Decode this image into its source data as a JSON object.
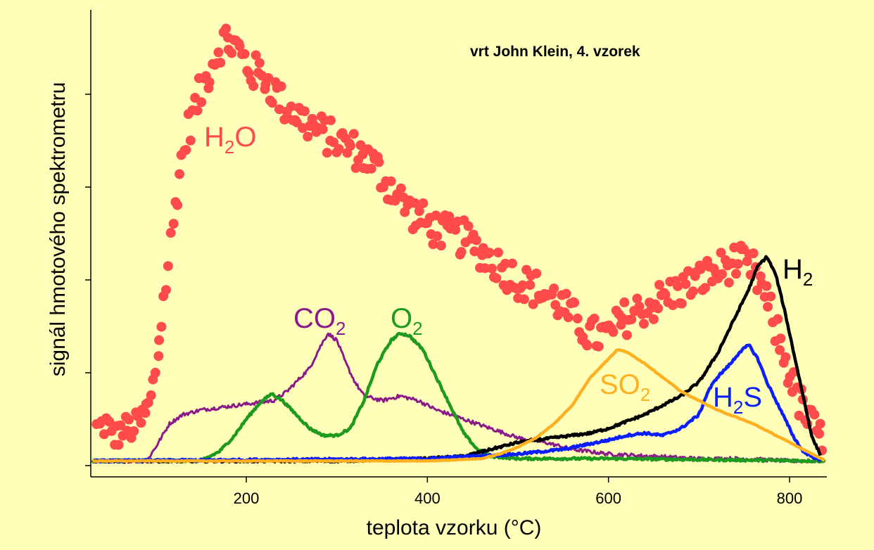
{
  "chart_data": {
    "type": "line",
    "title": "vrt John Klein, 4. vzorek",
    "xlabel": "teplota vzorku (°C)",
    "ylabel": "signál hmotového spektrometru",
    "xlim": [
      30,
      840
    ],
    "ylim": [
      0,
      100
    ],
    "x_ticks": [
      200,
      400,
      600,
      800
    ],
    "y_ticks": [
      0,
      20,
      40,
      60,
      80
    ],
    "y_tick_labels_shown": false,
    "grid": false,
    "legend": "inline labels next to curves",
    "series": [
      {
        "name": "H2O",
        "label_main": "H",
        "label_sub": "2",
        "label_tail": "O",
        "color": "#ff4b4b",
        "style": "markers",
        "x": [
          35,
          45,
          55,
          65,
          75,
          85,
          95,
          105,
          115,
          125,
          135,
          145,
          160,
          175,
          190,
          205,
          220,
          240,
          260,
          280,
          300,
          320,
          340,
          360,
          380,
          400,
          420,
          440,
          460,
          480,
          500,
          520,
          540,
          560,
          580,
          600,
          620,
          640,
          660,
          680,
          700,
          720,
          740,
          760,
          770,
          780,
          790,
          800,
          810,
          820,
          830,
          838
        ],
        "y": [
          8,
          9,
          6,
          8,
          8,
          10,
          14,
          28,
          45,
          62,
          72,
          78,
          86,
          92,
          90,
          85,
          84,
          78,
          75,
          72,
          70,
          68,
          65,
          60,
          55,
          52,
          50,
          49,
          46,
          43,
          40,
          38,
          36,
          32,
          28,
          28,
          32,
          34,
          36,
          38,
          40,
          42,
          44,
          42,
          38,
          32,
          26,
          20,
          14,
          10,
          7,
          5
        ]
      },
      {
        "name": "CO2",
        "label_main": "CO",
        "label_sub": "2",
        "label_tail": "",
        "color": "#8b1a8b",
        "style": "line",
        "x": [
          30,
          90,
          100,
          115,
          130,
          150,
          170,
          190,
          210,
          230,
          245,
          260,
          270,
          280,
          290,
          300,
          310,
          320,
          330,
          350,
          370,
          390,
          410,
          440,
          470,
          500,
          530,
          560,
          600,
          650,
          700,
          750,
          800,
          840
        ],
        "y": [
          1,
          1,
          4,
          9,
          11,
          12,
          12.5,
          13,
          13.5,
          14,
          16,
          19,
          21,
          25,
          28.5,
          27,
          22,
          18,
          15,
          14,
          15,
          14,
          12,
          10,
          8,
          6,
          5,
          3.5,
          2.5,
          2,
          1.5,
          1.5,
          1,
          1
        ]
      },
      {
        "name": "O2",
        "label_main": "O",
        "label_sub": "2",
        "label_tail": "",
        "color": "#1e9a1e",
        "style": "line",
        "x": [
          30,
          150,
          170,
          185,
          200,
          215,
          228,
          240,
          255,
          270,
          285,
          300,
          315,
          330,
          345,
          360,
          370,
          380,
          395,
          410,
          425,
          440,
          455,
          470,
          500,
          600,
          840
        ],
        "y": [
          1,
          1,
          3,
          6,
          10,
          13.5,
          15.5,
          14,
          11,
          8,
          6.5,
          6.5,
          8,
          14,
          22,
          27,
          28.5,
          28,
          25,
          19,
          13,
          7,
          3.5,
          2,
          1.5,
          1.5,
          1
        ]
      },
      {
        "name": "H2",
        "label_main": "H",
        "label_sub": "2",
        "label_tail": "",
        "color": "#000000",
        "style": "line",
        "x": [
          30,
          300,
          400,
          440,
          460,
          480,
          500,
          520,
          540,
          560,
          580,
          600,
          620,
          640,
          660,
          680,
          700,
          720,
          740,
          755,
          765,
          775,
          785,
          795,
          805,
          815,
          825,
          835
        ],
        "y": [
          1,
          1,
          1.5,
          2,
          3,
          4,
          5,
          5.5,
          6,
          6.5,
          7,
          8,
          9.5,
          11,
          13,
          15,
          18,
          24,
          32,
          38,
          43,
          45,
          41,
          33,
          24,
          15,
          6,
          2
        ]
      },
      {
        "name": "H2S",
        "label_main": "H",
        "label_sub": "2",
        "label_tail": "S",
        "color": "#0a1eff",
        "style": "line",
        "x": [
          30,
          400,
          500,
          550,
          600,
          620,
          640,
          660,
          680,
          700,
          710,
          720,
          735,
          745,
          755,
          765,
          775,
          785,
          795,
          805,
          815,
          825,
          835
        ],
        "y": [
          1,
          1.5,
          2.5,
          3.5,
          5.5,
          6.5,
          7,
          6.5,
          8,
          11,
          16,
          19,
          22,
          24.5,
          26,
          23,
          18,
          14,
          10,
          6,
          3,
          2,
          1
        ]
      },
      {
        "name": "SO2",
        "label_main": "SO",
        "label_sub": "2",
        "label_tail": "",
        "color": "#ffb020",
        "style": "line",
        "x": [
          30,
          400,
          460,
          480,
          500,
          520,
          540,
          560,
          580,
          600,
          610,
          620,
          640,
          660,
          680,
          700,
          720,
          740,
          760,
          780,
          800,
          820,
          840
        ],
        "y": [
          1,
          1,
          1.5,
          2.5,
          4,
          6,
          9,
          13,
          19,
          23,
          25,
          24.5,
          22,
          19,
          16,
          14,
          12,
          10.5,
          9,
          7,
          5,
          3,
          1
        ]
      }
    ]
  }
}
